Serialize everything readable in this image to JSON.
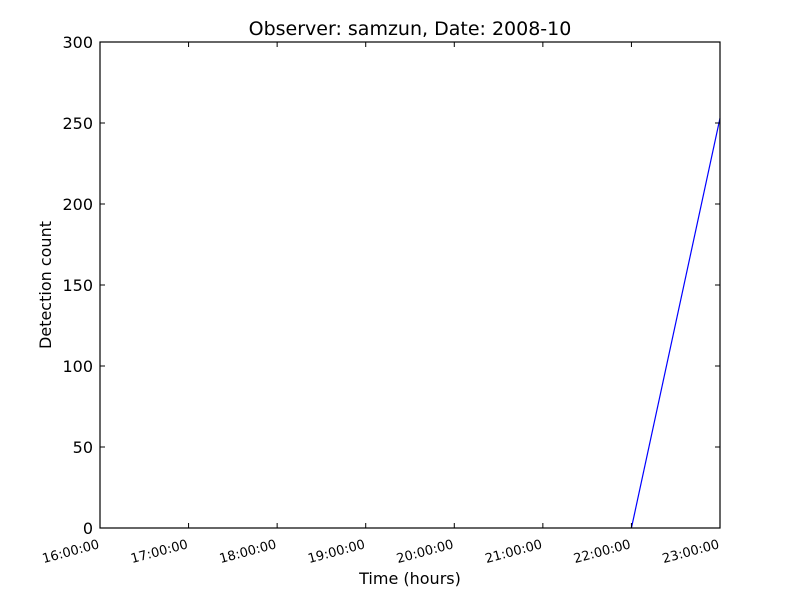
{
  "chart_data": {
    "type": "line",
    "title": "Observer: samzun, Date: 2008-10",
    "xlabel": "Time (hours)",
    "ylabel": "Detection count",
    "x_ticks": [
      "16:00:00",
      "17:00:00",
      "18:00:00",
      "19:00:00",
      "20:00:00",
      "21:00:00",
      "22:00:00",
      "23:00:00"
    ],
    "xlim": [
      "16:00:00",
      "23:00:00"
    ],
    "ylim": [
      0,
      300
    ],
    "y_ticks": [
      0,
      50,
      100,
      150,
      200,
      250,
      300
    ],
    "grid": false,
    "series": [
      {
        "color": "#0000ff",
        "x": [
          "22:00:00",
          "23:00:00"
        ],
        "y": [
          0,
          253
        ]
      }
    ]
  }
}
